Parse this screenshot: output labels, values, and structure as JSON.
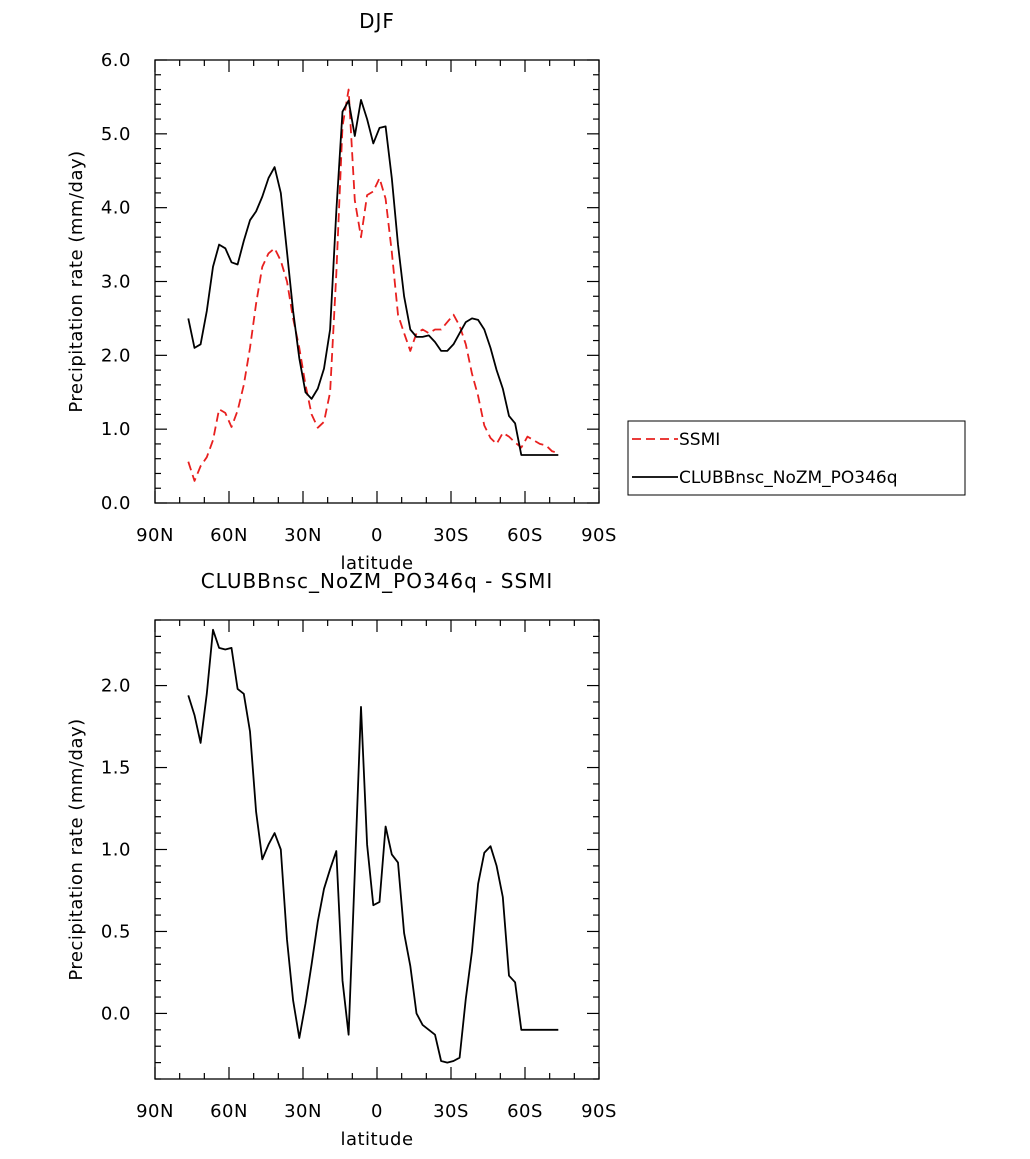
{
  "chart_data": [
    {
      "type": "line",
      "title": "DJF",
      "xlabel": "latitude",
      "ylabel": "Precipitation rate (mm/day)",
      "xlim": [
        -90,
        90
      ],
      "ylim": [
        0,
        6
      ],
      "x_ticks": [
        -90,
        -60,
        -30,
        0,
        30,
        60,
        90
      ],
      "x_tick_labels": [
        "90N",
        "60N",
        "30N",
        "0",
        "30S",
        "60S",
        "90S"
      ],
      "y_ticks": [
        0,
        1,
        2,
        3,
        4,
        5,
        6
      ],
      "y_tick_labels": [
        "0.0",
        "1.0",
        "2.0",
        "3.0",
        "4.0",
        "5.0",
        "6.0"
      ],
      "grid": false,
      "legend_position": "right, outside plot",
      "series": [
        {
          "name": "SSMI",
          "color": "#e8201f",
          "dash": "dashed",
          "x": [
            -76.5,
            -74,
            -71.5,
            -69,
            -66.5,
            -64,
            -61.5,
            -59,
            -56.5,
            -54,
            -51.5,
            -49,
            -46.5,
            -44,
            -41.5,
            -39,
            -36.5,
            -34,
            -31.5,
            -29,
            -26.5,
            -24,
            -21.5,
            -19,
            -16.5,
            -14,
            -11.5,
            -9,
            -6.5,
            -4,
            -1.5,
            1,
            3.5,
            6,
            8.5,
            11,
            13.5,
            16,
            18.5,
            21,
            23.5,
            26,
            28.5,
            31,
            33.5,
            36,
            38.5,
            41,
            43.5,
            46,
            48.5,
            51,
            53.5,
            56,
            58.5,
            61,
            63.5,
            66,
            68.5,
            71,
            73.5
          ],
          "values": [
            0.56,
            0.3,
            0.5,
            0.62,
            0.85,
            1.27,
            1.22,
            1.03,
            1.25,
            1.6,
            2.1,
            2.7,
            3.2,
            3.38,
            3.45,
            3.28,
            3.0,
            2.5,
            2.1,
            1.6,
            1.2,
            1.02,
            1.1,
            1.5,
            3.1,
            5.1,
            5.6,
            4.1,
            3.6,
            4.17,
            4.22,
            4.4,
            4.12,
            3.4,
            2.55,
            2.3,
            2.06,
            2.3,
            2.35,
            2.3,
            2.35,
            2.35,
            2.45,
            2.55,
            2.4,
            2.15,
            1.75,
            1.45,
            1.05,
            0.88,
            0.8,
            0.95,
            0.9,
            0.82,
            0.75,
            0.9,
            0.85,
            0.8,
            0.78,
            0.7,
            0.68
          ]
        },
        {
          "name": "CLUBBnsc_NoZM_PO346q",
          "color": "#000000",
          "dash": "solid",
          "x": [
            -76.5,
            -74,
            -71.5,
            -69,
            -66.5,
            -64,
            -61.5,
            -59,
            -56.5,
            -54,
            -51.5,
            -49,
            -46.5,
            -44,
            -41.5,
            -39,
            -36.5,
            -34,
            -31.5,
            -29,
            -26.5,
            -24,
            -21.5,
            -19,
            -16.5,
            -14,
            -11.5,
            -9,
            -6.5,
            -4,
            -1.5,
            1,
            3.5,
            6,
            8.5,
            11,
            13.5,
            16,
            18.5,
            21,
            23.5,
            26,
            28.5,
            31,
            33.5,
            36,
            38.5,
            41,
            43.5,
            46,
            48.5,
            51,
            53.5,
            56,
            58.5,
            61,
            63.5,
            66,
            68.5,
            71,
            73.5
          ],
          "values": [
            2.5,
            2.1,
            2.15,
            2.6,
            3.2,
            3.5,
            3.45,
            3.26,
            3.23,
            3.55,
            3.83,
            3.95,
            4.15,
            4.4,
            4.55,
            4.2,
            3.4,
            2.6,
            1.96,
            1.5,
            1.41,
            1.55,
            1.82,
            2.35,
            3.95,
            5.3,
            5.45,
            4.97,
            5.46,
            5.2,
            4.87,
            5.08,
            5.1,
            4.4,
            3.5,
            2.8,
            2.35,
            2.25,
            2.25,
            2.27,
            2.18,
            2.06,
            2.06,
            2.15,
            2.3,
            2.45,
            2.5,
            2.48,
            2.35,
            2.1,
            1.8,
            1.55,
            1.18,
            1.08,
            0.65,
            0.65,
            0.65,
            0.65,
            0.65,
            0.65,
            0.65
          ]
        }
      ]
    },
    {
      "type": "line",
      "title": "CLUBBnsc_NoZM_PO346q - SSMI",
      "xlabel": "latitude",
      "ylabel": "Precipitation rate (mm/day)",
      "xlim": [
        -90,
        90
      ],
      "ylim": [
        -0.4,
        2.4
      ],
      "x_ticks": [
        -90,
        -60,
        -30,
        0,
        30,
        60,
        90
      ],
      "x_tick_labels": [
        "90N",
        "60N",
        "30N",
        "0",
        "30S",
        "60S",
        "90S"
      ],
      "y_ticks": [
        0,
        0.5,
        1,
        1.5,
        2
      ],
      "y_tick_labels": [
        "0.0",
        "0.5",
        "1.0",
        "1.5",
        "2.0"
      ],
      "grid": false,
      "series": [
        {
          "color": "#000000",
          "dash": "solid",
          "x": [
            -76.5,
            -74,
            -71.5,
            -69,
            -66.5,
            -64,
            -61.5,
            -59,
            -56.5,
            -54,
            -51.5,
            -49,
            -46.5,
            -44,
            -41.5,
            -39,
            -36.5,
            -34,
            -31.5,
            -29,
            -26.5,
            -24,
            -21.5,
            -19,
            -16.5,
            -14,
            -11.5,
            -9,
            -6.5,
            -4,
            -1.5,
            1,
            3.5,
            6,
            8.5,
            11,
            13.5,
            16,
            18.5,
            21,
            23.5,
            26,
            28.5,
            31,
            33.5,
            36,
            38.5,
            41,
            43.5,
            46,
            48.5,
            51,
            53.5,
            56,
            58.5,
            61,
            63.5,
            66,
            68.5,
            71,
            73.5
          ],
          "values": [
            1.94,
            1.82,
            1.65,
            1.95,
            2.34,
            2.23,
            2.22,
            2.23,
            1.98,
            1.95,
            1.72,
            1.23,
            0.94,
            1.03,
            1.1,
            1.0,
            0.45,
            0.08,
            -0.15,
            0.06,
            0.3,
            0.56,
            0.76,
            0.88,
            0.99,
            0.2,
            -0.13,
            0.86,
            1.87,
            1.03,
            0.66,
            0.68,
            1.14,
            0.97,
            0.92,
            0.49,
            0.29,
            0.0,
            -0.07,
            -0.1,
            -0.13,
            -0.29,
            -0.3,
            -0.29,
            -0.27,
            0.09,
            0.38,
            0.79,
            0.98,
            1.02,
            0.9,
            0.71,
            0.23,
            0.19,
            -0.1,
            -0.1,
            -0.1,
            -0.1,
            -0.1,
            -0.1,
            -0.1
          ]
        }
      ]
    }
  ]
}
